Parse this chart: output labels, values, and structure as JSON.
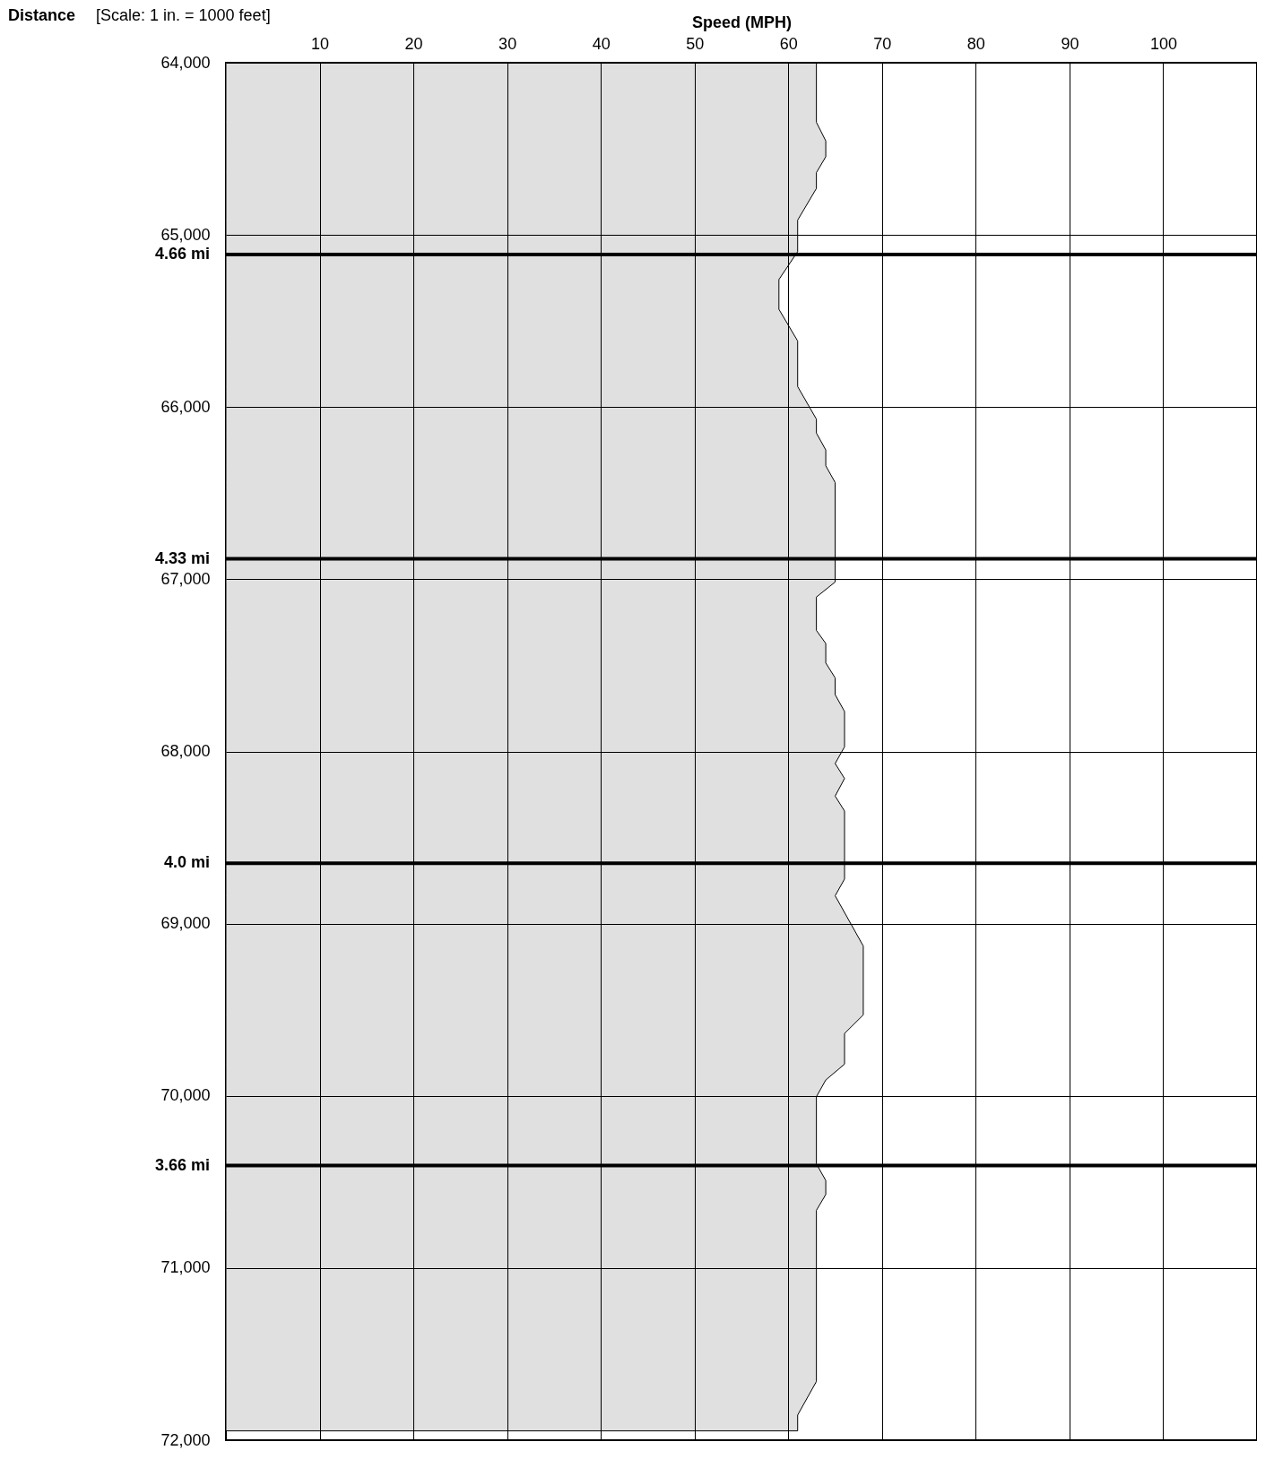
{
  "chart_data": {
    "type": "area",
    "orientation": "horizontal",
    "xlabel": "Speed (MPH)",
    "annotations": [
      "Distance",
      "[Scale: 1 in. = 1000 feet]"
    ],
    "x": [
      64000,
      64346,
      64454,
      64546,
      64638,
      64730,
      64914,
      65097,
      65259,
      65432,
      65616,
      65881,
      66070,
      66151,
      66249,
      66341,
      66438,
      67016,
      67103,
      67297,
      67373,
      67486,
      67573,
      67670,
      67768,
      67973,
      68070,
      68157,
      68259,
      68346,
      68741,
      68838,
      69130,
      69530,
      69638,
      69816,
      69908,
      70005,
      70395,
      70492,
      70573,
      70665,
      71659,
      71854,
      71946
    ],
    "series": [
      {
        "color": "#e0e0e0",
        "values": [
          63,
          63,
          64,
          64,
          63,
          63,
          61,
          61,
          59,
          59,
          61,
          61,
          63,
          63,
          64,
          64,
          65,
          65,
          63,
          63,
          64,
          64,
          65,
          65,
          66,
          66,
          65,
          66,
          65,
          66,
          66,
          65,
          68,
          68,
          66,
          66,
          64,
          63,
          63,
          64,
          64,
          63,
          63,
          61,
          61
        ]
      }
    ],
    "xlim": [
      0,
      110
    ],
    "xticks": [
      10,
      20,
      30,
      40,
      50,
      60,
      70,
      80,
      90,
      100
    ],
    "ylim": [
      72000,
      64000
    ],
    "yticks": [
      {
        "value": 64000,
        "label": "64,000"
      },
      {
        "value": 65000,
        "label": "65,000"
      },
      {
        "value": 66000,
        "label": "66,000"
      },
      {
        "value": 67000,
        "label": "67,000"
      },
      {
        "value": 68000,
        "label": "68,000"
      },
      {
        "value": 69000,
        "label": "69,000"
      },
      {
        "value": 70000,
        "label": "70,000"
      },
      {
        "value": 71000,
        "label": "71,000"
      },
      {
        "value": 72000,
        "label": "72,000"
      }
    ],
    "grid": true,
    "ref_lines": [
      {
        "axis": "y",
        "value": 65114,
        "label": "4.66 mi",
        "color": "#000000"
      },
      {
        "axis": "y",
        "value": 66881,
        "label": "4.33 mi",
        "color": "#000000"
      },
      {
        "axis": "y",
        "value": 68649,
        "label": "4.0 mi",
        "color": "#000000"
      },
      {
        "axis": "y",
        "value": 70405,
        "label": "3.66 mi",
        "color": "#000000"
      }
    ]
  }
}
